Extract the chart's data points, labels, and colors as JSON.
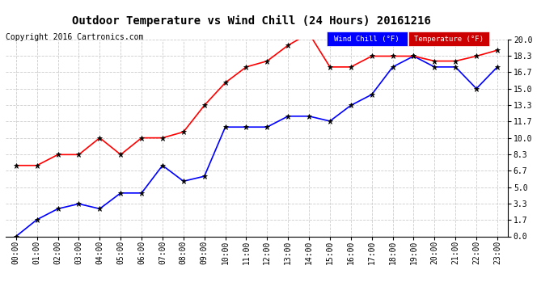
{
  "title": "Outdoor Temperature vs Wind Chill (24 Hours) 20161216",
  "copyright": "Copyright 2016 Cartronics.com",
  "background_color": "#ffffff",
  "grid_color": "#cccccc",
  "x_labels": [
    "00:00",
    "01:00",
    "02:00",
    "03:00",
    "04:00",
    "05:00",
    "06:00",
    "07:00",
    "08:00",
    "09:00",
    "10:00",
    "11:00",
    "12:00",
    "13:00",
    "14:00",
    "15:00",
    "16:00",
    "17:00",
    "18:00",
    "19:00",
    "20:00",
    "21:00",
    "22:00",
    "23:00"
  ],
  "y_ticks": [
    0.0,
    1.7,
    3.3,
    5.0,
    6.7,
    8.3,
    10.0,
    11.7,
    13.3,
    15.0,
    16.7,
    18.3,
    20.0
  ],
  "wind_chill_color": "blue",
  "temperature_color": "red",
  "wind_chill_label": "Wind Chill (°F)",
  "temperature_label": "Temperature (°F)",
  "wind_chill_values": [
    0.0,
    1.7,
    2.8,
    3.3,
    2.8,
    4.4,
    4.4,
    7.2,
    5.6,
    6.1,
    11.1,
    11.1,
    11.1,
    12.2,
    12.2,
    11.7,
    13.3,
    14.4,
    17.2,
    18.3,
    17.2,
    17.2,
    15.0,
    17.2
  ],
  "temperature_values": [
    7.2,
    7.2,
    8.3,
    8.3,
    10.0,
    8.3,
    10.0,
    10.0,
    10.6,
    13.3,
    15.6,
    17.2,
    17.8,
    19.4,
    20.6,
    17.2,
    17.2,
    18.3,
    18.3,
    18.3,
    17.8,
    17.8,
    18.3,
    18.9
  ],
  "ylim_min": 0.0,
  "ylim_max": 20.0,
  "legend_wind_bg": "#0000ff",
  "legend_temp_bg": "#cc0000",
  "legend_text_color": "white",
  "title_fontsize": 10,
  "copyright_fontsize": 7,
  "tick_fontsize": 7
}
